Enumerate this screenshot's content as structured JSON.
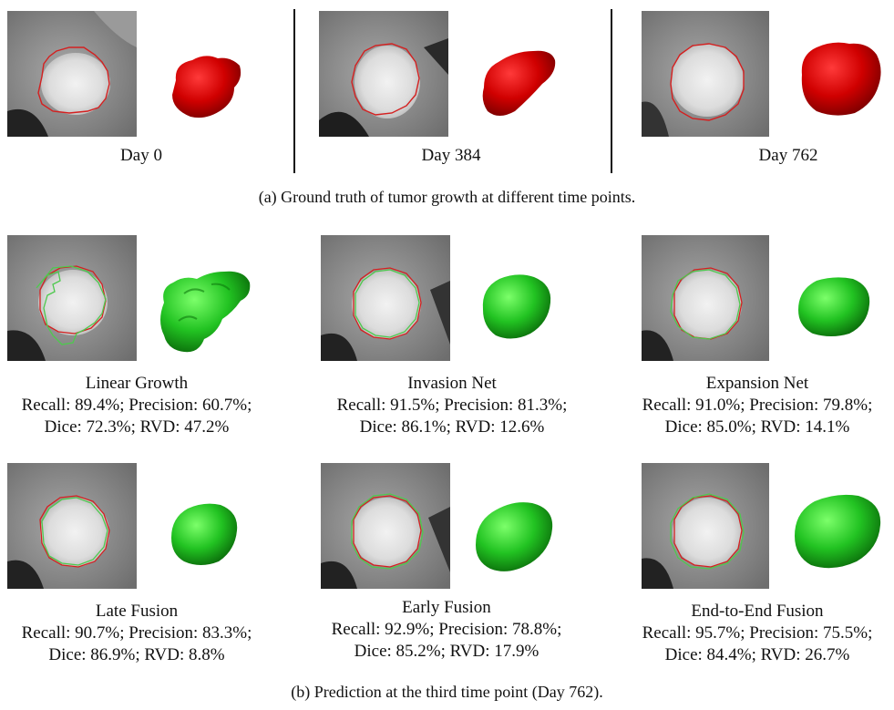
{
  "panel_a": {
    "caption": "(a) Ground truth of tumor growth at different time points.",
    "items": [
      {
        "label": "Day 0"
      },
      {
        "label": "Day 384"
      },
      {
        "label": "Day 762"
      }
    ]
  },
  "panel_b": {
    "caption": "(b) Prediction at the third time point (Day 762).",
    "items": [
      {
        "name": "Linear Growth",
        "line1": "Recall: 89.4%; Precision: 60.7%;",
        "line2": "Dice: 72.3%; RVD: 47.2%"
      },
      {
        "name": "Invasion Net",
        "line1": "Recall: 91.5%; Precision: 81.3%;",
        "line2": "Dice: 86.1%; RVD: 12.6%"
      },
      {
        "name": "Expansion Net",
        "line1": "Recall: 91.0%; Precision: 79.8%;",
        "line2": "Dice: 85.0%; RVD: 14.1%"
      },
      {
        "name": "Late Fusion",
        "line1": "Recall: 90.7%; Precision: 83.3%;",
        "line2": "Dice: 86.9%; RVD: 8.8%"
      },
      {
        "name": "Early Fusion",
        "line1": "Recall: 92.9%; Precision: 78.8%;",
        "line2": "Dice: 85.2%; RVD: 17.9%"
      },
      {
        "name": "End-to-End Fusion",
        "line1": "Recall: 95.7%; Precision: 75.5%;",
        "line2": "Dice: 84.4%; RVD: 26.7%"
      }
    ]
  },
  "colors": {
    "ground_truth_contour": "#d42020",
    "prediction_contour": "#4ec94e",
    "ground_truth_mesh": "#d00000",
    "prediction_mesh": "#22c322"
  }
}
